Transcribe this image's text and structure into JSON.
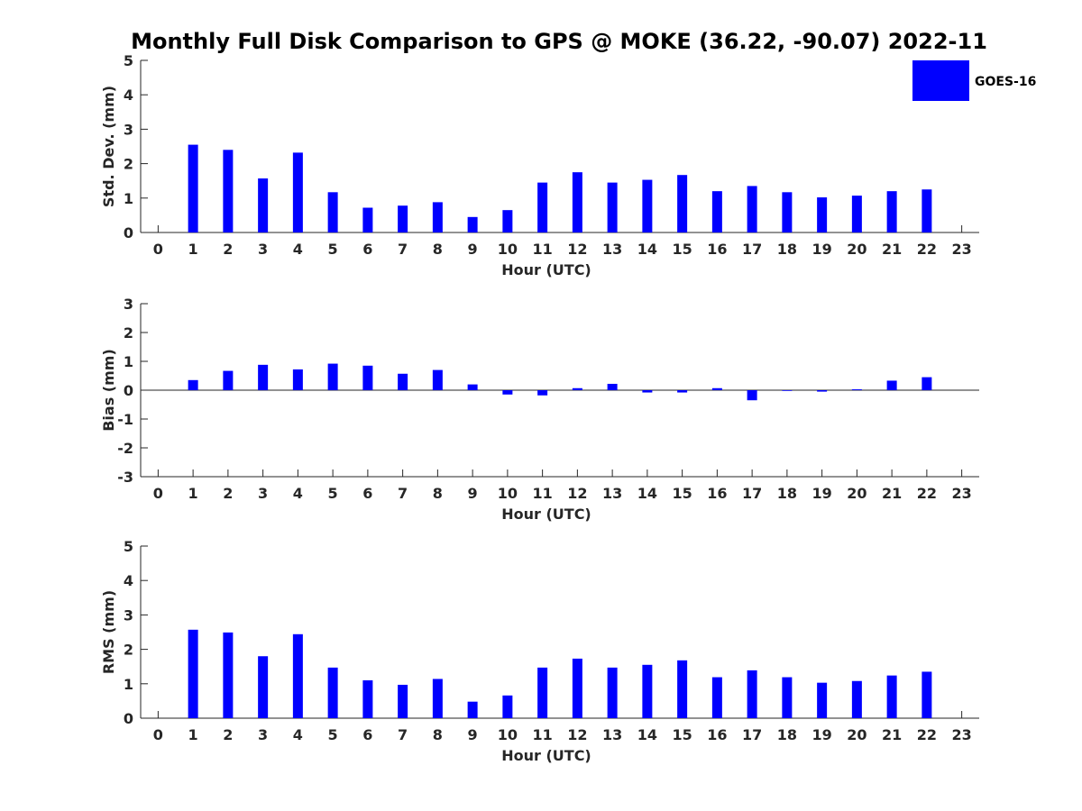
{
  "title": "Monthly Full Disk Comparison to GPS @ MOKE (36.22, -90.07) 2022-11",
  "legend": {
    "label": "GOES-16",
    "color": "#0000ff"
  },
  "colors": {
    "bar": "#0000ff",
    "axis": "#262626"
  },
  "chart_data": [
    {
      "type": "bar",
      "xlabel": "Hour (UTC)",
      "ylabel": "Std. Dev. (mm)",
      "xlim": [
        -0.5,
        23.5
      ],
      "ylim": [
        0,
        5
      ],
      "yticks": [
        0,
        1,
        2,
        3,
        4,
        5
      ],
      "categories": [
        0,
        1,
        2,
        3,
        4,
        5,
        6,
        7,
        8,
        9,
        10,
        11,
        12,
        13,
        14,
        15,
        16,
        17,
        18,
        19,
        20,
        21,
        22,
        23
      ],
      "series": [
        {
          "name": "GOES-16",
          "values": [
            null,
            2.55,
            2.4,
            1.57,
            2.32,
            1.17,
            0.72,
            0.78,
            0.88,
            0.45,
            0.65,
            1.45,
            1.75,
            1.45,
            1.53,
            1.67,
            1.2,
            1.35,
            1.17,
            1.02,
            1.07,
            1.2,
            1.25,
            null
          ]
        }
      ]
    },
    {
      "type": "bar",
      "xlabel": "Hour (UTC)",
      "ylabel": "Bias (mm)",
      "xlim": [
        -0.5,
        23.5
      ],
      "ylim": [
        -3,
        3
      ],
      "yticks": [
        -3,
        -2,
        -1,
        0,
        1,
        2,
        3
      ],
      "zero_line": true,
      "categories": [
        0,
        1,
        2,
        3,
        4,
        5,
        6,
        7,
        8,
        9,
        10,
        11,
        12,
        13,
        14,
        15,
        16,
        17,
        18,
        19,
        20,
        21,
        22,
        23
      ],
      "series": [
        {
          "name": "GOES-16",
          "values": [
            null,
            0.35,
            0.67,
            0.88,
            0.72,
            0.92,
            0.85,
            0.57,
            0.7,
            0.2,
            -0.15,
            -0.18,
            0.07,
            0.22,
            -0.08,
            -0.08,
            0.07,
            -0.35,
            0.0,
            -0.05,
            0.03,
            0.33,
            0.45,
            null
          ]
        }
      ]
    },
    {
      "type": "bar",
      "xlabel": "Hour (UTC)",
      "ylabel": "RMS (mm)",
      "xlim": [
        -0.5,
        23.5
      ],
      "ylim": [
        0,
        5
      ],
      "yticks": [
        0,
        1,
        2,
        3,
        4,
        5
      ],
      "categories": [
        0,
        1,
        2,
        3,
        4,
        5,
        6,
        7,
        8,
        9,
        10,
        11,
        12,
        13,
        14,
        15,
        16,
        17,
        18,
        19,
        20,
        21,
        22,
        23
      ],
      "series": [
        {
          "name": "GOES-16",
          "values": [
            null,
            2.57,
            2.49,
            1.8,
            2.44,
            1.47,
            1.1,
            0.97,
            1.14,
            0.48,
            0.66,
            1.47,
            1.73,
            1.47,
            1.55,
            1.68,
            1.19,
            1.39,
            1.19,
            1.03,
            1.08,
            1.24,
            1.35,
            null
          ]
        }
      ]
    }
  ]
}
